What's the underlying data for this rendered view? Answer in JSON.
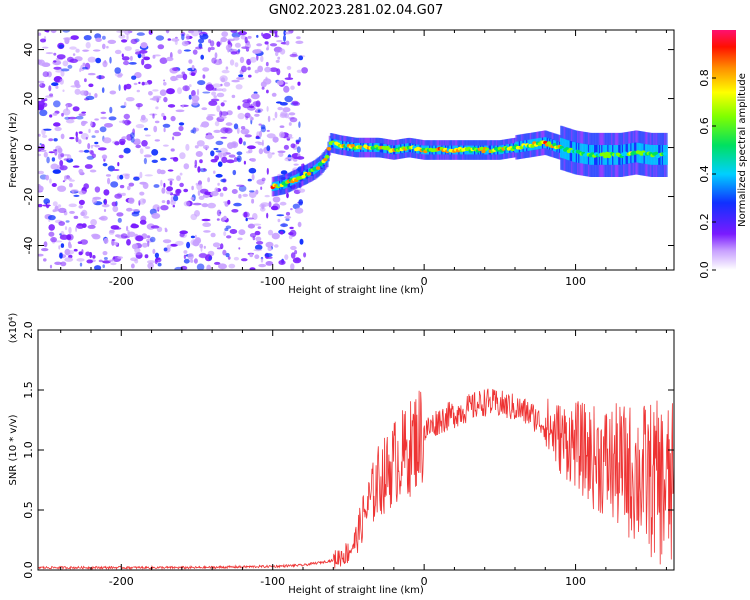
{
  "title": "GN02.2023.281.02.04.G07",
  "chart_data": [
    {
      "type": "heatmap",
      "name": "spectrogram",
      "xlabel": "Height of straight line (km)",
      "ylabel": "Frequency (Hz)",
      "xlim": [
        -255,
        165
      ],
      "ylim": [
        -50,
        48
      ],
      "x_ticks": [
        -200,
        -100,
        0,
        100
      ],
      "y_ticks": [
        -40,
        -20,
        0,
        20,
        40
      ],
      "colorbar": {
        "label": "Normalized spectral amplitude",
        "range": [
          0.0,
          1.0
        ],
        "ticks": [
          0.0,
          0.2,
          0.4,
          0.6,
          0.8
        ]
      },
      "noise_region_x": [
        -255,
        -92
      ],
      "signal_track": {
        "x": [
          -100,
          -92,
          -85,
          -78,
          -72,
          -68,
          -64,
          -62,
          -55,
          -45,
          -30,
          -20,
          -10,
          0,
          10,
          20,
          30,
          40,
          50,
          60,
          70,
          80,
          90,
          100,
          110,
          120,
          130,
          140,
          150,
          160
        ],
        "y": [
          -16,
          -15,
          -13,
          -11,
          -9,
          -7,
          -4,
          2,
          1,
          0,
          0,
          -1,
          0,
          -1,
          -1,
          -1,
          -1,
          -1,
          -1,
          0,
          1,
          2,
          0,
          -2,
          -3,
          -3,
          -3,
          -2,
          -3,
          -3
        ]
      }
    },
    {
      "type": "line",
      "name": "snr",
      "xlabel": "Height of straight line (km)",
      "ylabel": "SNR (10 * v/v)",
      "y_multiplier": "(x10⁴)",
      "xlim": [
        -255,
        165
      ],
      "ylim": [
        0.0,
        2.0
      ],
      "x_ticks": [
        -200,
        -100,
        0,
        100
      ],
      "y_ticks": [
        0.0,
        0.5,
        1.0,
        1.5,
        2.0
      ],
      "color": "#ee3333",
      "x": [
        -255,
        -200,
        -150,
        -100,
        -80,
        -60,
        -50,
        -45,
        -40,
        -35,
        -30,
        -25,
        -20,
        -15,
        -10,
        -5,
        0,
        10,
        20,
        30,
        40,
        50,
        60,
        70,
        80,
        90,
        100,
        110,
        120,
        130,
        140,
        150,
        160,
        165
      ],
      "y": [
        0.02,
        0.02,
        0.02,
        0.03,
        0.04,
        0.08,
        0.15,
        0.25,
        0.45,
        0.6,
        0.75,
        0.8,
        0.9,
        0.95,
        1.0,
        1.1,
        1.15,
        1.25,
        1.3,
        1.35,
        1.4,
        1.38,
        1.35,
        1.3,
        1.2,
        1.1,
        1.05,
        0.95,
        0.9,
        0.85,
        0.8,
        0.75,
        0.7,
        0.65
      ]
    }
  ]
}
